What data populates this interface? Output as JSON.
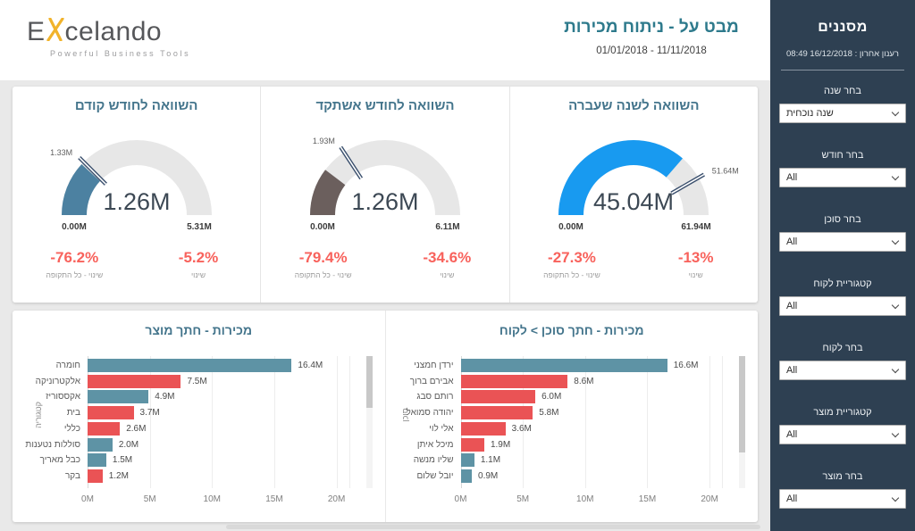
{
  "header": {
    "logo_start": "E",
    "logo_end": "celando",
    "tagline": "Powerful Business Tools",
    "title": "מבט על - ניתוח מכירות",
    "date_range": "01/01/2018 - 11/11/2018"
  },
  "sidebar": {
    "title": "מסננים",
    "last_refresh": "רענון אחרון : 16/12/2018 08:49",
    "filters": [
      {
        "label": "בחר שנה",
        "value": "שנה נוכחית"
      },
      {
        "label": "בחר חודש",
        "value": "All"
      },
      {
        "label": "בחר סוכן",
        "value": "All"
      },
      {
        "label": "קטגוריית לקוח",
        "value": "All"
      },
      {
        "label": "בחר לקוח",
        "value": "All"
      },
      {
        "label": "קטגוריית מוצר",
        "value": "All"
      },
      {
        "label": "בחר מוצר",
        "value": "All"
      }
    ]
  },
  "colors": {
    "sidebar_bg": "#2e4052",
    "accent_red": "#f8625c",
    "bar_teal": "#5e93a5",
    "bar_red": "#ea5355",
    "gauge_blue": "#4c81a1",
    "gauge_taupe": "#6b5f5d",
    "gauge_azure": "#189af0",
    "title_teal": "#44758c",
    "needle_navy": "#3a4f6d"
  },
  "chart_data": [
    {
      "type": "gauge",
      "title": "השוואה לחודש קודם",
      "value": 1.26,
      "value_label": "1.26M",
      "min": 0,
      "min_label": "0.00M",
      "max": 5.31,
      "max_label": "5.31M",
      "target": 1.33,
      "target_label": "1.33M",
      "fill_color": "#4c81a1",
      "kpis": [
        {
          "value": "-76.2%",
          "label": "שינוי - כל התקופה"
        },
        {
          "value": "-5.2%",
          "label": "שינוי"
        }
      ]
    },
    {
      "type": "gauge",
      "title": "השוואה לחודש אשתקד",
      "value": 1.26,
      "value_label": "1.26M",
      "min": 0,
      "min_label": "0.00M",
      "max": 6.11,
      "max_label": "6.11M",
      "target": 1.93,
      "target_label": "1.93M",
      "fill_color": "#6b5f5d",
      "kpis": [
        {
          "value": "-79.4%",
          "label": "שינוי - כל התקופה"
        },
        {
          "value": "-34.6%",
          "label": "שינוי"
        }
      ]
    },
    {
      "type": "gauge",
      "title": "השוואה לשנה שעברה",
      "value": 45.04,
      "value_label": "45.04M",
      "min": 0,
      "min_label": "0.00M",
      "max": 61.94,
      "max_label": "61.94M",
      "target": 51.64,
      "target_label": "51.64M",
      "fill_color": "#189af0",
      "kpis": [
        {
          "value": "-27.3%",
          "label": "שינוי - כל התקופה"
        },
        {
          "value": "-13%",
          "label": "שינוי"
        }
      ]
    },
    {
      "type": "bar",
      "title": "מכירות - חתך מוצר",
      "ylabel": "קטגוריה",
      "categories": [
        "חומרה",
        "אלקטרוניקה",
        "אקססוריז",
        "בית",
        "כללי",
        "סוללות נטענות",
        "כבל מאריך",
        "בקר"
      ],
      "values": [
        16.4,
        7.5,
        4.9,
        3.7,
        2.6,
        2.0,
        1.5,
        1.2
      ],
      "value_labels": [
        "16.4M",
        "7.5M",
        "4.9M",
        "3.7M",
        "2.6M",
        "2.0M",
        "1.5M",
        "1.2M"
      ],
      "bar_colors": [
        "#5e93a5",
        "#ea5355",
        "#5e93a5",
        "#ea5355",
        "#ea5355",
        "#5e93a5",
        "#5e93a5",
        "#ea5355"
      ],
      "x_ticks": [
        {
          "value": 0,
          "label": "0M"
        },
        {
          "value": 5,
          "label": "5M"
        },
        {
          "value": 10,
          "label": "10M"
        },
        {
          "value": 15,
          "label": "15M"
        },
        {
          "value": 20,
          "label": "20M"
        }
      ],
      "xlim": [
        0,
        21
      ],
      "scrollbar_thumb_pct": 39
    },
    {
      "type": "bar",
      "title": "מכירות - חתך סוכן > לקוח",
      "ylabel": "סוכן",
      "categories": [
        "ירדן חמצני",
        "אבירם ברוך",
        "רותם סבג",
        "יהודה סמואל",
        "אלי לוי",
        "מיכל איתן",
        "שליו מנשה",
        "יובל שלום"
      ],
      "values": [
        16.6,
        8.6,
        6.0,
        5.8,
        3.6,
        1.9,
        1.1,
        0.9
      ],
      "value_labels": [
        "16.6M",
        "8.6M",
        "6.0M",
        "5.8M",
        "3.6M",
        "1.9M",
        "1.1M",
        "0.9M"
      ],
      "bar_colors": [
        "#5e93a5",
        "#ea5355",
        "#ea5355",
        "#ea5355",
        "#ea5355",
        "#ea5355",
        "#5e93a5",
        "#5e93a5"
      ],
      "x_ticks": [
        {
          "value": 0,
          "label": "0M"
        },
        {
          "value": 5,
          "label": "5M"
        },
        {
          "value": 10,
          "label": "10M"
        },
        {
          "value": 15,
          "label": "15M"
        },
        {
          "value": 20,
          "label": "20M"
        }
      ],
      "xlim": [
        0,
        21
      ],
      "scrollbar_thumb_pct": 73
    }
  ]
}
